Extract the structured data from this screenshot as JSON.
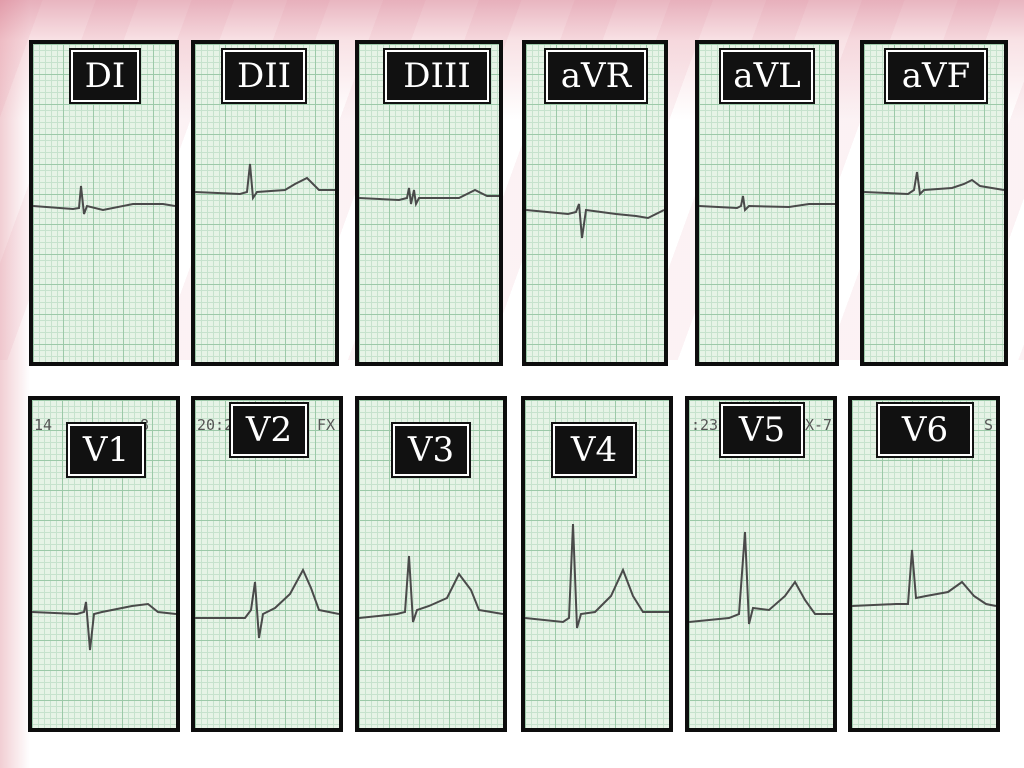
{
  "colors": {
    "panel_border": "#0d0d0d",
    "grid_paper": "#e6f3e6",
    "trace": "#4a4a4a",
    "label_bg": "#111111",
    "label_text": "#ffffff"
  },
  "leads_top": [
    {
      "id": "DI",
      "label": "DI"
    },
    {
      "id": "DII",
      "label": "DII"
    },
    {
      "id": "DIII",
      "label": "DIII"
    },
    {
      "id": "aVR",
      "label": "aVR"
    },
    {
      "id": "aVL",
      "label": "aVL"
    },
    {
      "id": "aVF",
      "label": "aVF"
    }
  ],
  "leads_bottom": [
    {
      "id": "V1",
      "label": "V1"
    },
    {
      "id": "V2",
      "label": "V2"
    },
    {
      "id": "V3",
      "label": "V3"
    },
    {
      "id": "V4",
      "label": "V4"
    },
    {
      "id": "V5",
      "label": "V5"
    },
    {
      "id": "V6",
      "label": "V6"
    }
  ],
  "paper_fragments": {
    "v1_left": "14",
    "v1_right": "8",
    "v2_left": "20:2",
    "v2_right": "FX",
    "v5_left": ":23",
    "v5_right": "X-7",
    "v6_right": "S"
  }
}
